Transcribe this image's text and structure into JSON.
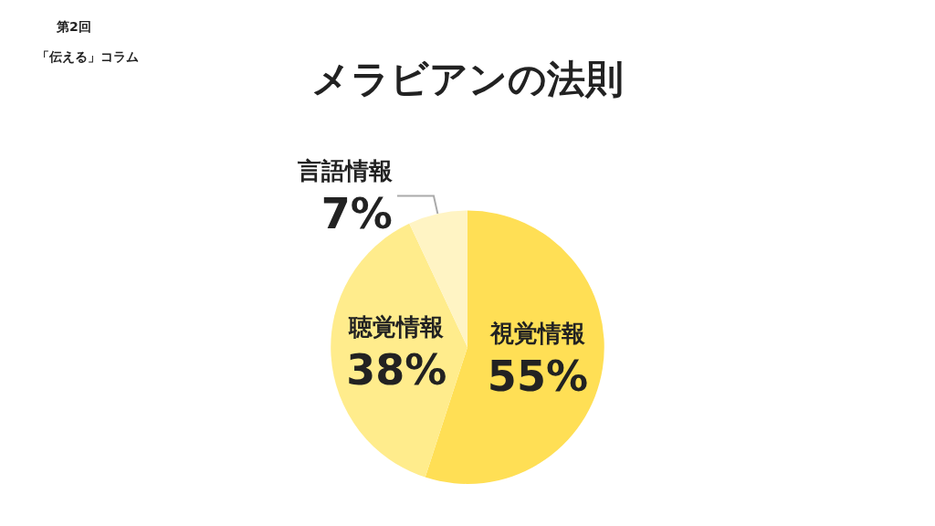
{
  "chart_data": {
    "type": "pie",
    "title": "メラビアンの法則",
    "categories": [
      "視覚情報",
      "聴覚情報",
      "言語情報"
    ],
    "values": [
      55,
      38,
      7
    ],
    "colors": [
      "#ffdf55",
      "#ffec8c",
      "#fff4c4"
    ],
    "value_labels": [
      "55%",
      "38%",
      "7%"
    ],
    "annotations": [
      "第2回",
      "「伝える」コラム"
    ],
    "legend": false
  }
}
